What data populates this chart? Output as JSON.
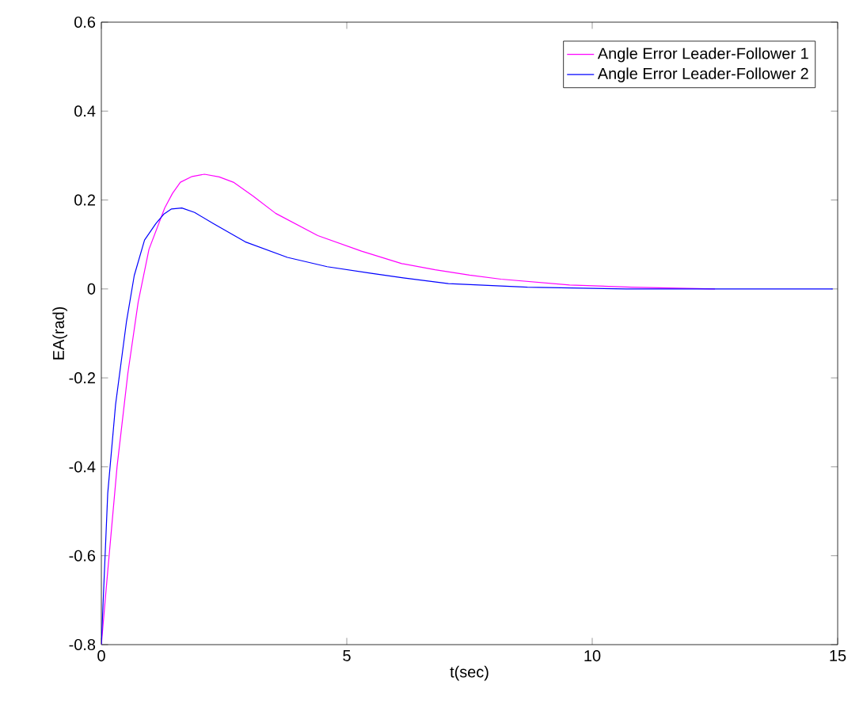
{
  "chart_data": {
    "type": "line",
    "xlabel": "t(sec)",
    "ylabel": "EA(rad)",
    "xlim": [
      0,
      15
    ],
    "ylim": [
      -0.8,
      0.6
    ],
    "xticks": [
      0,
      5,
      10,
      15
    ],
    "yticks": [
      -0.8,
      -0.6,
      -0.4,
      -0.2,
      0,
      0.2,
      0.4,
      0.6
    ],
    "grid": false,
    "legend": "top right",
    "marker": "none",
    "line_style": "solid",
    "series": [
      {
        "name": "Angle Error Leader-Follower 1",
        "color": "#ff00ff",
        "x": [
          0,
          0.13,
          0.32,
          0.54,
          0.75,
          0.97,
          1.29,
          1.45,
          1.61,
          1.85,
          2.1,
          2.4,
          2.69,
          3.1,
          3.55,
          4.41,
          5.3,
          6.12,
          6.8,
          7.5,
          8.14,
          9.54,
          10.8,
          12.5
        ],
        "values": [
          -0.8,
          -0.635,
          -0.4,
          -0.19,
          -0.03,
          0.089,
          0.182,
          0.215,
          0.24,
          0.253,
          0.258,
          0.252,
          0.24,
          0.208,
          0.17,
          0.12,
          0.085,
          0.057,
          0.043,
          0.031,
          0.022,
          0.009,
          0.004,
          0
        ]
      },
      {
        "name": "Angle Error Leader-Follower 2",
        "color": "#0000ff",
        "x": [
          0,
          0.13,
          0.29,
          0.51,
          0.67,
          0.88,
          1.11,
          1.27,
          1.43,
          1.64,
          1.9,
          2.28,
          2.93,
          3.79,
          4.6,
          5.5,
          6.15,
          7.07,
          8.68,
          10.7,
          14.9
        ],
        "values": [
          -0.8,
          -0.46,
          -0.26,
          -0.075,
          0.03,
          0.11,
          0.147,
          0.168,
          0.18,
          0.182,
          0.172,
          0.147,
          0.106,
          0.071,
          0.05,
          0.035,
          0.025,
          0.012,
          0.004,
          0,
          0
        ]
      }
    ]
  }
}
